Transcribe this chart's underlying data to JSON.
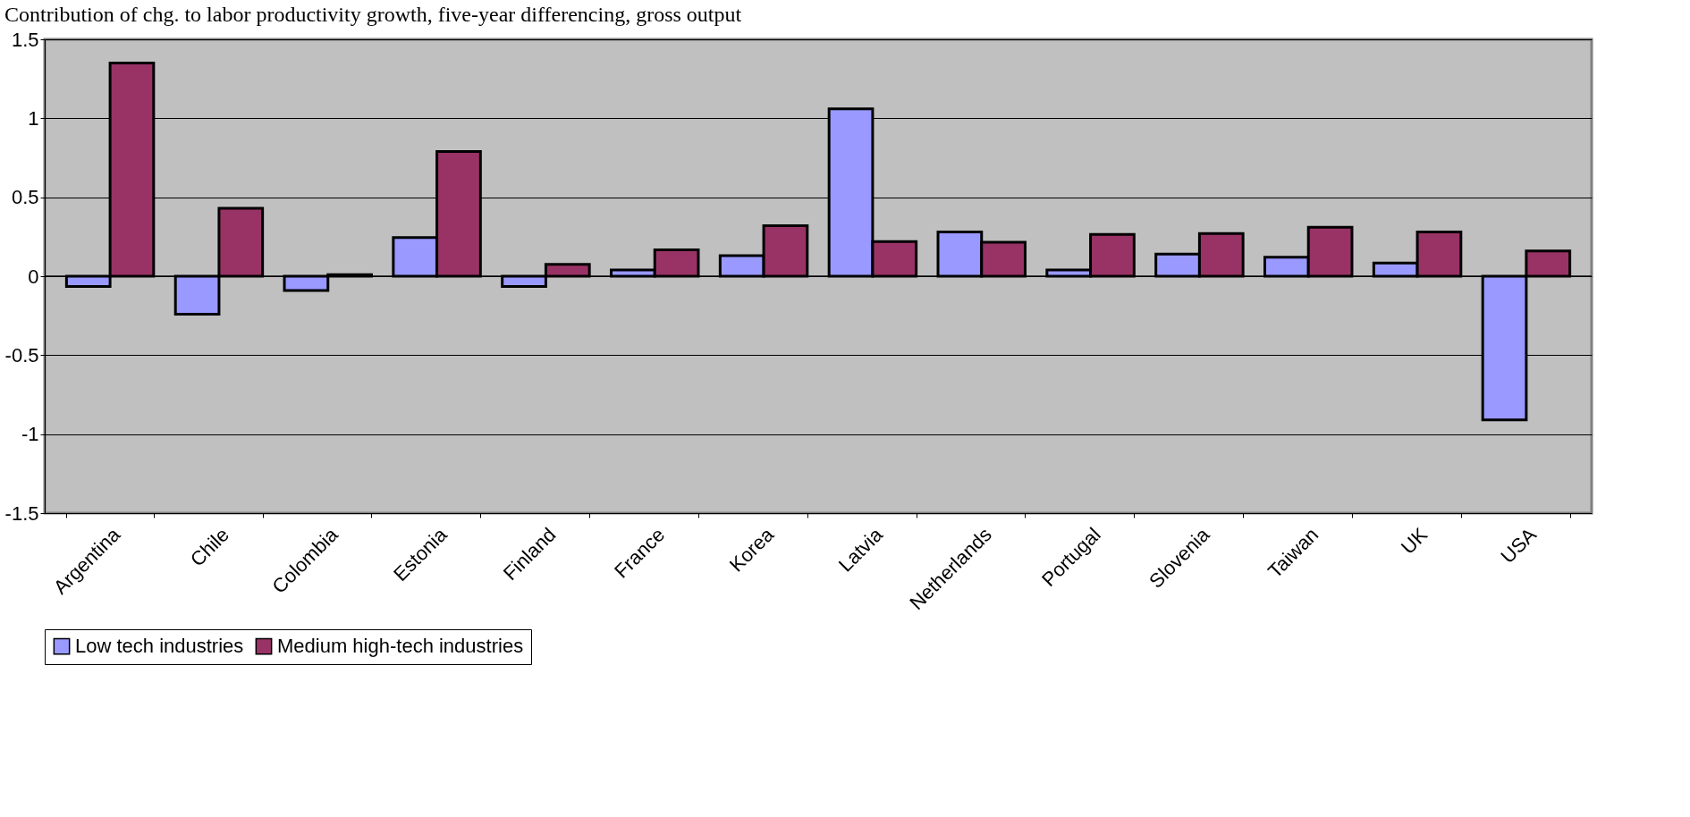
{
  "chart_data": {
    "type": "bar",
    "title": "Contribution of chg. to labor productivity growth, five-year differencing, gross output",
    "categories": [
      "Argentina",
      "Chile",
      "Colombia",
      "Estonia",
      "Finland",
      "France",
      "Korea",
      "Latvia",
      "Netherlands",
      "Portugal",
      "Slovenia",
      "Taiwan",
      "UK",
      "USA"
    ],
    "series": [
      {
        "name": "Low tech industries",
        "color": "#9999ff",
        "values": [
          -0.065,
          -0.24,
          -0.09,
          0.245,
          -0.065,
          0.04,
          0.13,
          1.06,
          0.28,
          0.04,
          0.14,
          0.12,
          0.083,
          -0.91
        ]
      },
      {
        "name": "Medium high-tech industries",
        "color": "#993366",
        "values": [
          1.35,
          0.43,
          0.01,
          0.79,
          0.075,
          0.167,
          0.32,
          0.22,
          0.215,
          0.265,
          0.27,
          0.31,
          0.28,
          0.16
        ]
      }
    ],
    "ylim": [
      -1.5,
      1.5
    ],
    "yticks": [
      -1.5,
      -1,
      -0.5,
      0,
      0.5,
      1,
      1.5
    ],
    "grid": "y",
    "legend": "bottom"
  }
}
